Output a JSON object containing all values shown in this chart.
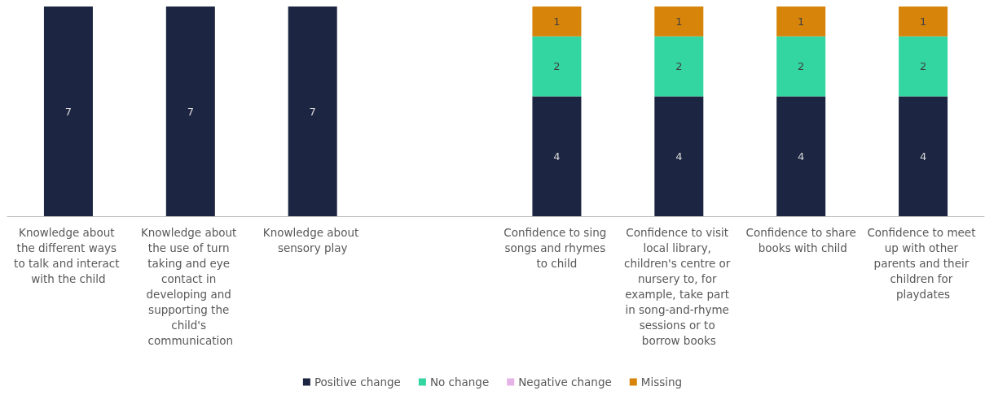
{
  "chart_data": {
    "type": "bar",
    "stacked": true,
    "categories": [
      "Knowledge about the different ways to talk and interact with the child",
      "Knowledge about the use of turn taking and eye contact in developing and supporting the child's communication",
      "Knowledge about sensory play",
      null,
      "Confidence to sing songs and rhymes to child",
      "Confidence to visit local library, children's centre or nursery to, for example, take part in song-and-rhyme sessions or to borrow books",
      "Confidence to share books with child",
      "Confidence to meet up with other parents and their children for playdates"
    ],
    "series": [
      {
        "name": "Positive change",
        "color": "#1c2541",
        "values": [
          7,
          7,
          7,
          null,
          4,
          4,
          4,
          4
        ]
      },
      {
        "name": "No change",
        "color": "#33d6a0",
        "values": [
          null,
          null,
          null,
          null,
          2,
          2,
          2,
          2
        ]
      },
      {
        "name": "Negative change",
        "color": "#e6b3e6",
        "values": [
          null,
          null,
          null,
          null,
          null,
          null,
          null,
          null
        ]
      },
      {
        "name": "Missing",
        "color": "#d6840a",
        "values": [
          null,
          null,
          null,
          null,
          1,
          1,
          1,
          1
        ]
      }
    ],
    "ylim": [
      0,
      7
    ],
    "tick_labels": "x",
    "data_labels": true,
    "legend": "bottom",
    "grid": false
  }
}
